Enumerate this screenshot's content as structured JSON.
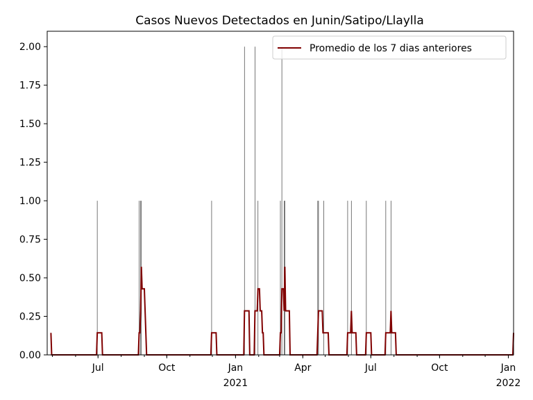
{
  "chart_data": {
    "type": "bar",
    "title": "Casos Nuevos Detectados en Junin/Satipo/Llaylla",
    "xlabel": "",
    "ylabel": "",
    "x_range": [
      "2020-04-24",
      "2022-01-08"
    ],
    "ylim": [
      0,
      2.1
    ],
    "grid": false,
    "legend_position": "top-right",
    "yticks": [
      0.0,
      0.25,
      0.5,
      0.75,
      1.0,
      1.25,
      1.5,
      1.75,
      2.0
    ],
    "ytick_labels": [
      "0.00",
      "0.25",
      "0.50",
      "0.75",
      "1.00",
      "1.25",
      "1.50",
      "1.75",
      "2.00"
    ],
    "xticks": [
      {
        "date": "2020-07-01",
        "label": "Jul",
        "sub": ""
      },
      {
        "date": "2020-10-01",
        "label": "Oct",
        "sub": ""
      },
      {
        "date": "2021-01-01",
        "label": "Jan",
        "sub": "2021"
      },
      {
        "date": "2021-04-01",
        "label": "Apr",
        "sub": ""
      },
      {
        "date": "2021-07-01",
        "label": "Jul",
        "sub": ""
      },
      {
        "date": "2021-10-01",
        "label": "Oct",
        "sub": ""
      },
      {
        "date": "2022-01-01",
        "label": "Jan",
        "sub": "2022"
      }
    ],
    "bar_color": "#555555",
    "line_color": "#800000",
    "series": [
      {
        "kind": "bars",
        "points": [
          [
            "2020-06-30",
            1
          ],
          [
            "2020-08-25",
            1
          ],
          [
            "2020-08-27",
            1
          ],
          [
            "2020-08-28",
            1
          ],
          [
            "2020-11-30",
            1
          ],
          [
            "2021-01-13",
            2
          ],
          [
            "2021-01-27",
            2
          ],
          [
            "2021-01-31",
            1
          ],
          [
            "2021-03-02",
            1
          ],
          [
            "2021-03-04",
            2
          ],
          [
            "2021-03-07",
            1
          ],
          [
            "2021-03-08",
            1
          ],
          [
            "2021-04-21",
            1
          ],
          [
            "2021-04-22",
            1
          ],
          [
            "2021-04-29",
            1
          ],
          [
            "2021-05-31",
            1
          ],
          [
            "2021-06-05",
            1
          ],
          [
            "2021-06-25",
            1
          ],
          [
            "2021-07-21",
            1
          ],
          [
            "2021-07-28",
            1
          ],
          [
            "2022-01-08",
            1
          ]
        ]
      },
      {
        "kind": "line",
        "name": "Promedio de los 7 dias anteriores",
        "points": [
          [
            "2020-04-29",
            0.1429
          ],
          [
            "2020-04-30",
            0
          ],
          [
            "2020-06-29",
            0
          ],
          [
            "2020-06-30",
            0.1429
          ],
          [
            "2020-07-06",
            0.1429
          ],
          [
            "2020-07-07",
            0
          ],
          [
            "2020-08-24",
            0
          ],
          [
            "2020-08-25",
            0.1429
          ],
          [
            "2020-08-26",
            0.1429
          ],
          [
            "2020-08-27",
            0.2857
          ],
          [
            "2020-08-28",
            0.5714
          ],
          [
            "2020-08-29",
            0.4286
          ],
          [
            "2020-09-01",
            0.4286
          ],
          [
            "2020-09-02",
            0.2857
          ],
          [
            "2020-09-03",
            0.1429
          ],
          [
            "2020-09-04",
            0
          ],
          [
            "2020-11-29",
            0
          ],
          [
            "2020-11-30",
            0.1429
          ],
          [
            "2020-12-06",
            0.1429
          ],
          [
            "2020-12-07",
            0
          ],
          [
            "2021-01-12",
            0
          ],
          [
            "2021-01-13",
            0.2857
          ],
          [
            "2021-01-19",
            0.2857
          ],
          [
            "2021-01-20",
            0
          ],
          [
            "2021-01-26",
            0
          ],
          [
            "2021-01-27",
            0.2857
          ],
          [
            "2021-01-30",
            0.2857
          ],
          [
            "2021-01-31",
            0.4286
          ],
          [
            "2021-02-02",
            0.4286
          ],
          [
            "2021-02-03",
            0.2857
          ],
          [
            "2021-02-06",
            0.1429
          ],
          [
            "2021-02-07",
            0.1429
          ],
          [
            "2021-02-08",
            0
          ],
          [
            "2021-03-01",
            0
          ],
          [
            "2021-03-02",
            0.1429
          ],
          [
            "2021-03-03",
            0.1429
          ],
          [
            "2021-03-04",
            0.4286
          ],
          [
            "2021-03-06",
            0.4286
          ],
          [
            "2021-03-07",
            0.2857
          ],
          [
            "2021-03-08",
            0.5714
          ],
          [
            "2021-03-09",
            0.2857
          ],
          [
            "2021-03-10",
            0.2857
          ],
          [
            "2021-03-14",
            0.2857
          ],
          [
            "2021-03-15",
            0
          ],
          [
            "2021-04-20",
            0
          ],
          [
            "2021-04-21",
            0.1429
          ],
          [
            "2021-04-22",
            0.2857
          ],
          [
            "2021-04-27",
            0.2857
          ],
          [
            "2021-04-28",
            0.1429
          ],
          [
            "2021-05-05",
            0.1429
          ],
          [
            "2021-05-06",
            0
          ],
          [
            "2021-05-30",
            0
          ],
          [
            "2021-05-31",
            0.1429
          ],
          [
            "2021-06-04",
            0.1429
          ],
          [
            "2021-06-05",
            0.2857
          ],
          [
            "2021-06-06",
            0.1429
          ],
          [
            "2021-06-11",
            0.1429
          ],
          [
            "2021-06-12",
            0
          ],
          [
            "2021-06-24",
            0
          ],
          [
            "2021-06-25",
            0.1429
          ],
          [
            "2021-07-01",
            0.1429
          ],
          [
            "2021-07-02",
            0
          ],
          [
            "2021-07-20",
            0
          ],
          [
            "2021-07-21",
            0.1429
          ],
          [
            "2021-07-27",
            0.1429
          ],
          [
            "2021-07-28",
            0.2857
          ],
          [
            "2021-07-29",
            0.1429
          ],
          [
            "2021-08-03",
            0.1429
          ],
          [
            "2021-08-04",
            0
          ],
          [
            "2022-01-07",
            0
          ],
          [
            "2022-01-08",
            0.1429
          ]
        ]
      }
    ]
  }
}
